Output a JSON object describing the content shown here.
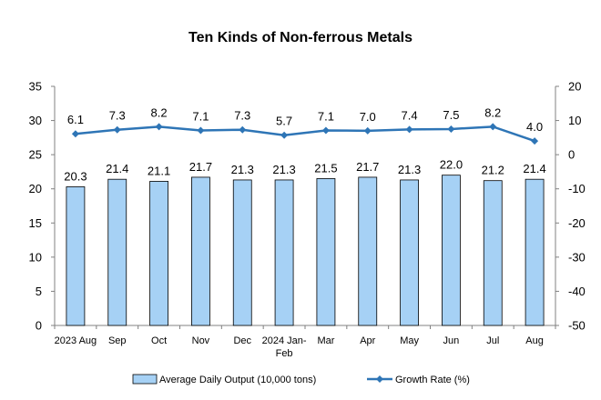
{
  "chart_data": {
    "type": "bar",
    "title": "Ten Kinds of Non-ferrous Metals",
    "categories": [
      [
        "2023 Aug"
      ],
      [
        "Sep"
      ],
      [
        "Oct"
      ],
      [
        "Nov"
      ],
      [
        "Dec"
      ],
      [
        "2024 Jan-",
        "Feb"
      ],
      [
        "Mar"
      ],
      [
        "Apr"
      ],
      [
        "May"
      ],
      [
        "Jun"
      ],
      [
        "Jul"
      ],
      [
        "Aug"
      ]
    ],
    "series": [
      {
        "name": "Average Daily Output (10,000 tons)",
        "type": "bar",
        "axis": "left",
        "color": "#a6d1f5",
        "values": [
          20.3,
          21.4,
          21.1,
          21.7,
          21.3,
          21.3,
          21.5,
          21.7,
          21.3,
          22.0,
          21.2,
          21.4
        ],
        "labels": [
          "20.3",
          "21.4",
          "21.1",
          "21.7",
          "21.3",
          "21.3",
          "21.5",
          "21.7",
          "21.3",
          "22.0",
          "21.2",
          "21.4"
        ]
      },
      {
        "name": "Growth Rate (%)",
        "type": "line",
        "axis": "right",
        "color": "#2e75b6",
        "values": [
          6.1,
          7.3,
          8.2,
          7.1,
          7.3,
          5.7,
          7.1,
          7.0,
          7.4,
          7.5,
          8.2,
          4.0
        ],
        "labels": [
          "6.1",
          "7.3",
          "8.2",
          "7.1",
          "7.3",
          "5.7",
          "7.1",
          "7.0",
          "7.4",
          "7.5",
          "8.2",
          "4.0"
        ]
      }
    ],
    "y_left": {
      "min": 0,
      "max": 35,
      "ticks": [
        "0",
        "5",
        "10",
        "15",
        "20",
        "25",
        "30",
        "35"
      ]
    },
    "y_right": {
      "min": -50,
      "max": 20,
      "ticks": [
        "-50",
        "-40",
        "-30",
        "-20",
        "-10",
        "0",
        "10",
        "20"
      ]
    },
    "grid": false,
    "legend_position": "bottom"
  }
}
